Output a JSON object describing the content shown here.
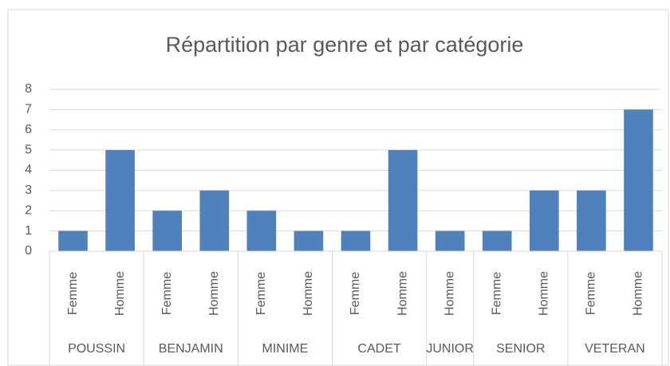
{
  "chart_data": {
    "type": "bar",
    "title": "Répartition par genre et par catégorie",
    "groups": [
      {
        "name": "POUSSIN",
        "categories": [
          "Femme",
          "Homme"
        ],
        "values": [
          1,
          5
        ]
      },
      {
        "name": "BENJAMIN",
        "categories": [
          "Femme",
          "Homme"
        ],
        "values": [
          2,
          3
        ]
      },
      {
        "name": "MINIME",
        "categories": [
          "Femme",
          "Homme"
        ],
        "values": [
          2,
          1
        ]
      },
      {
        "name": "CADET",
        "categories": [
          "Femme",
          "Homme"
        ],
        "values": [
          1,
          5
        ]
      },
      {
        "name": "JUNIOR",
        "categories": [
          "Homme"
        ],
        "values": [
          1
        ]
      },
      {
        "name": "SENIOR",
        "categories": [
          "Femme",
          "Homme"
        ],
        "values": [
          1,
          3
        ]
      },
      {
        "name": "VETERAN",
        "categories": [
          "Femme",
          "Homme"
        ],
        "values": [
          3,
          7
        ]
      }
    ],
    "color": "#4f81bd",
    "ylim": [
      0,
      8
    ],
    "yticks": [
      0,
      1,
      2,
      3,
      4,
      5,
      6,
      7,
      8
    ],
    "grid": true
  }
}
